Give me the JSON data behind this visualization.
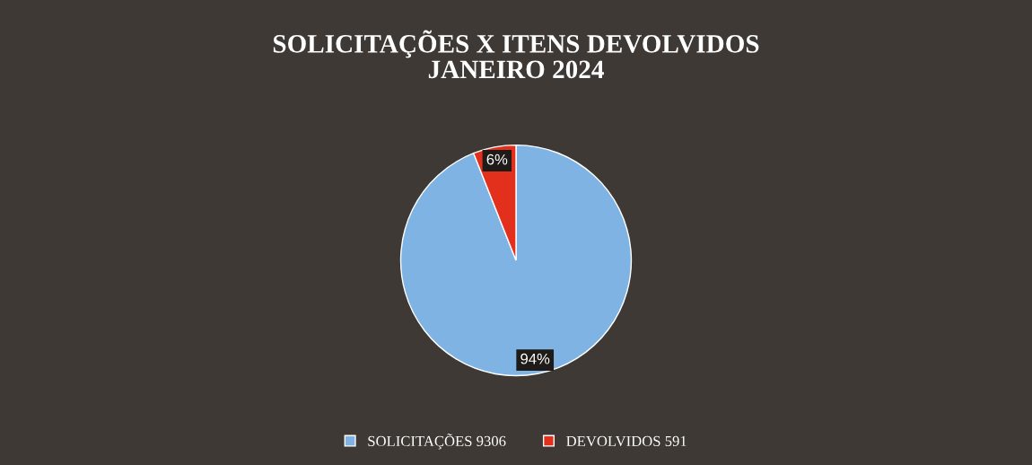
{
  "chart_data": {
    "type": "pie",
    "title": "SOLICITAÇÕES X ITENS DEVOLVIDOS\nJANEIRO 2024",
    "categories": [
      "SOLICITAÇÕES 9306",
      "DEVOLVIDOS 591"
    ],
    "values": [
      94,
      6
    ],
    "value_labels": [
      "94%",
      "6%"
    ],
    "colors": [
      "#7eb3e3",
      "#e2301c"
    ],
    "legend": "bottom"
  }
}
